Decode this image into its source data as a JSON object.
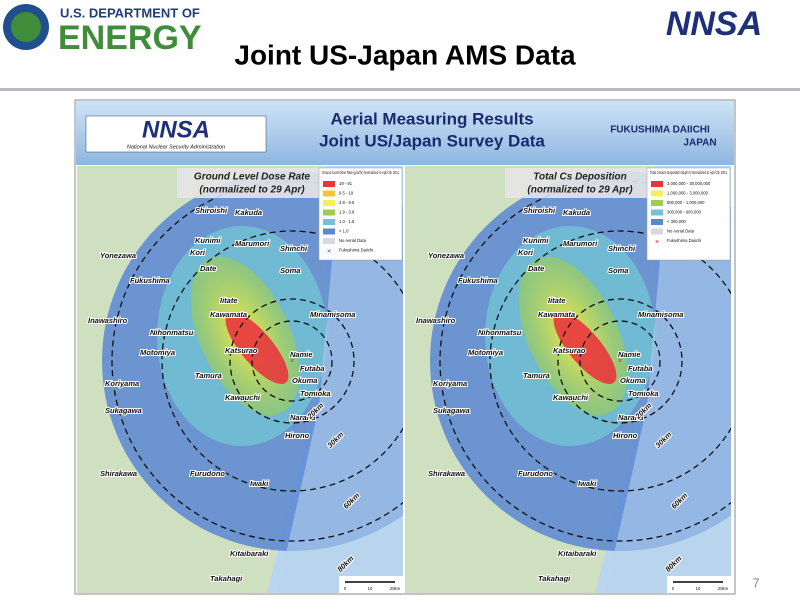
{
  "header": {
    "department_line1": "U.S. DEPARTMENT OF",
    "department_line2": "ENERGY",
    "title": "Joint US-Japan AMS Data",
    "logo": "NNSA"
  },
  "banner": {
    "logo": "NNSA",
    "logo_caption": "National Nuclear Security Administration",
    "title_line1": "Aerial Measuring Results",
    "title_line2": "Joint US/Japan Survey Data",
    "site_line1": "FUKUSHIMA DAIICHI",
    "site_line2": "JAPAN"
  },
  "maps": [
    {
      "title_line1": "Ground Level Dose Rate",
      "title_line2": "(normalized to 29 Apr)",
      "legend_title": "Ground Level Dose Rate (µSv/hr) Normalized to April 29, 2011",
      "legend": [
        {
          "name": "19 - 91",
          "color": "#e8363e"
        },
        {
          "name": "9.5 - 19",
          "color": "#f6c43c"
        },
        {
          "name": "3.8 - 9.5",
          "color": "#f4f05a"
        },
        {
          "name": "1.9 - 3.8",
          "color": "#9ccd4f"
        },
        {
          "name": "1.0 - 1.9",
          "color": "#72c3d4"
        },
        {
          "name": "< 1.0",
          "color": "#5a86d2"
        },
        {
          "name": "No Aerial Data",
          "color": "#d8d8e0"
        },
        {
          "name": "Fukushima Daiichi",
          "color": "#cc2222"
        }
      ]
    },
    {
      "title_line1": "Total Cs Deposition",
      "title_line2": "(normalized to 29 Apr)",
      "legend_title": "Total Cesium Deposition (Bq/m²) Normalized to April 29, 2011",
      "legend": [
        {
          "name": "3,000,000 - 30,000,000",
          "color": "#e8363e"
        },
        {
          "name": "1,000,000 - 3,000,000",
          "color": "#f4f05a"
        },
        {
          "name": "600,000 - 1,000,000",
          "color": "#9ccd4f"
        },
        {
          "name": "300,000 - 600,000",
          "color": "#72c3d4"
        },
        {
          "name": "< 300,000",
          "color": "#5a86d2"
        },
        {
          "name": "No Aerial Data",
          "color": "#d8d8e0"
        },
        {
          "name": "Fukushima Daiichi",
          "color": "#cc2222"
        }
      ]
    }
  ],
  "places": [
    "Shiroishi",
    "Kakuda",
    "Kunimi",
    "Kori",
    "Marumori",
    "Shinchi",
    "Yonezawa",
    "Date",
    "Soma",
    "Fukushima",
    "Iitate",
    "Kawamata",
    "Minamisoma",
    "Inawashiro",
    "Nihonmatsu",
    "Katsurao",
    "Namie",
    "Motomiya",
    "Futaba",
    "Koriyama",
    "Tamura",
    "Okuma",
    "Kawauchi",
    "Tomioka",
    "Sukagawa",
    "Naraha",
    "Hirono",
    "Shirakawa",
    "Furudono",
    "Iwaki",
    "Kitaibaraki",
    "Takahagi"
  ],
  "rings": [
    "20km",
    "30km",
    "60km",
    "80km"
  ],
  "scale": [
    "0",
    "10",
    "20km"
  ],
  "page_number": "7"
}
